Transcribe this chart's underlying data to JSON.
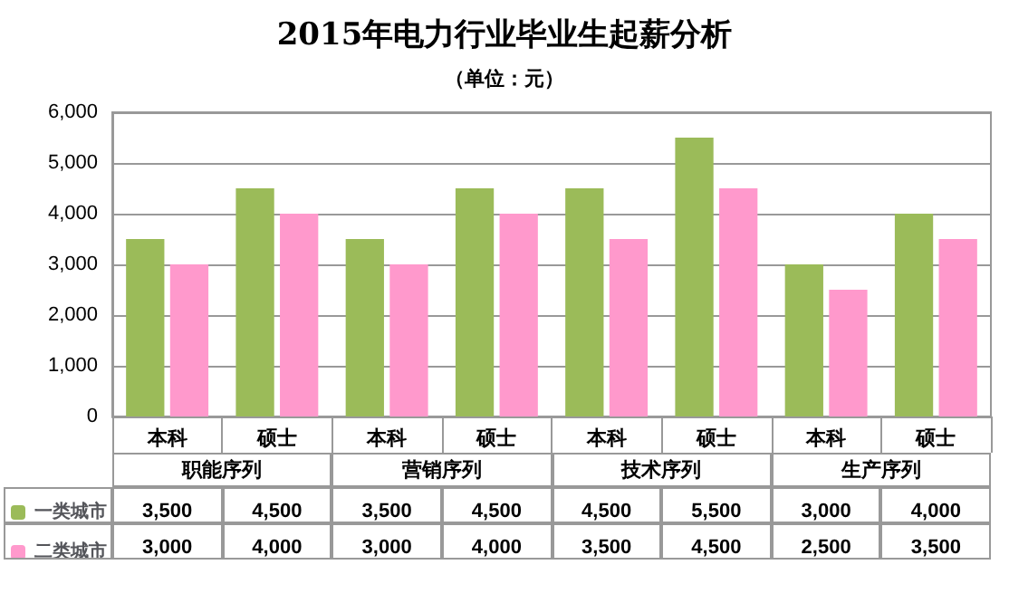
{
  "chart_data": {
    "type": "bar",
    "title": "2015年电力行业毕业生起薪分析",
    "subtitle": "（单位：元）",
    "categories": [
      "本科",
      "硕士",
      "本科",
      "硕士",
      "本科",
      "硕士",
      "本科",
      "硕士"
    ],
    "annotations": [
      "职能序列",
      "营销序列",
      "技术序列",
      "生产序列"
    ],
    "series": [
      {
        "name": "一类城市",
        "color": "#9bbb59",
        "values": [
          3500,
          4500,
          3500,
          4500,
          4500,
          5500,
          3000,
          4000
        ],
        "value_labels": [
          "3,500",
          "4,500",
          "3,500",
          "4,500",
          "4,500",
          "5,500",
          "3,000",
          "4,000"
        ]
      },
      {
        "name": "二类城市",
        "color": "#ff99cc",
        "values": [
          3000,
          4000,
          3000,
          4000,
          3500,
          4500,
          2500,
          3500
        ],
        "value_labels": [
          "3,000",
          "4,000",
          "3,000",
          "4,000",
          "3,500",
          "4,500",
          "2,500",
          "3,500"
        ]
      }
    ],
    "ylim": [
      0,
      6000
    ],
    "yticks": [
      0,
      {
        "value": 1000,
        "label": "1,000"
      },
      {
        "value": 2000,
        "label": "2,000"
      },
      {
        "value": 3000,
        "label": "3,000"
      },
      {
        "value": 4000,
        "label": "4,000"
      },
      {
        "value": 5000,
        "label": "5,000"
      },
      {
        "value": 6000,
        "label": "6,000"
      }
    ],
    "grid": "y",
    "legend": "bottom"
  }
}
